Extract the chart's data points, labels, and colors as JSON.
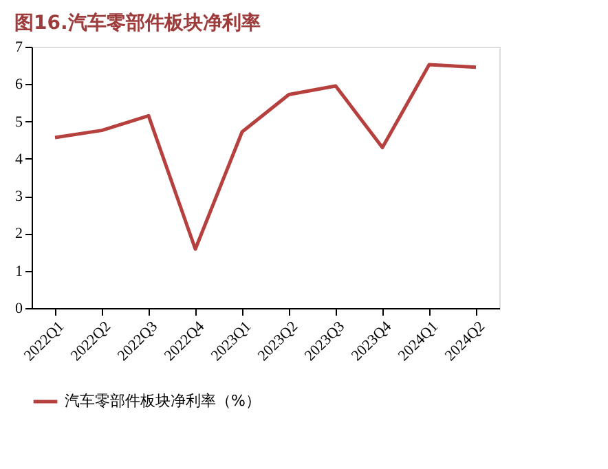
{
  "chart_data": {
    "type": "line",
    "title": "图16.汽车零部件板块净利率",
    "categories": [
      "2022Q1",
      "2022Q2",
      "2022Q3",
      "2022Q4",
      "2023Q1",
      "2023Q2",
      "2023Q3",
      "2023Q4",
      "2024Q1",
      "2024Q2"
    ],
    "series": [
      {
        "name": "汽车零部件板块净利率（%）",
        "color": "#b5403e",
        "values": [
          4.57,
          4.76,
          5.15,
          1.58,
          4.72,
          5.72,
          5.95,
          4.3,
          6.52,
          6.45
        ]
      }
    ],
    "ylim": [
      0,
      7
    ],
    "yticks": [
      0,
      1,
      2,
      3,
      4,
      5,
      6,
      7
    ],
    "grid": false,
    "legend": "bottom",
    "marker": "none",
    "line_style": "solid"
  }
}
